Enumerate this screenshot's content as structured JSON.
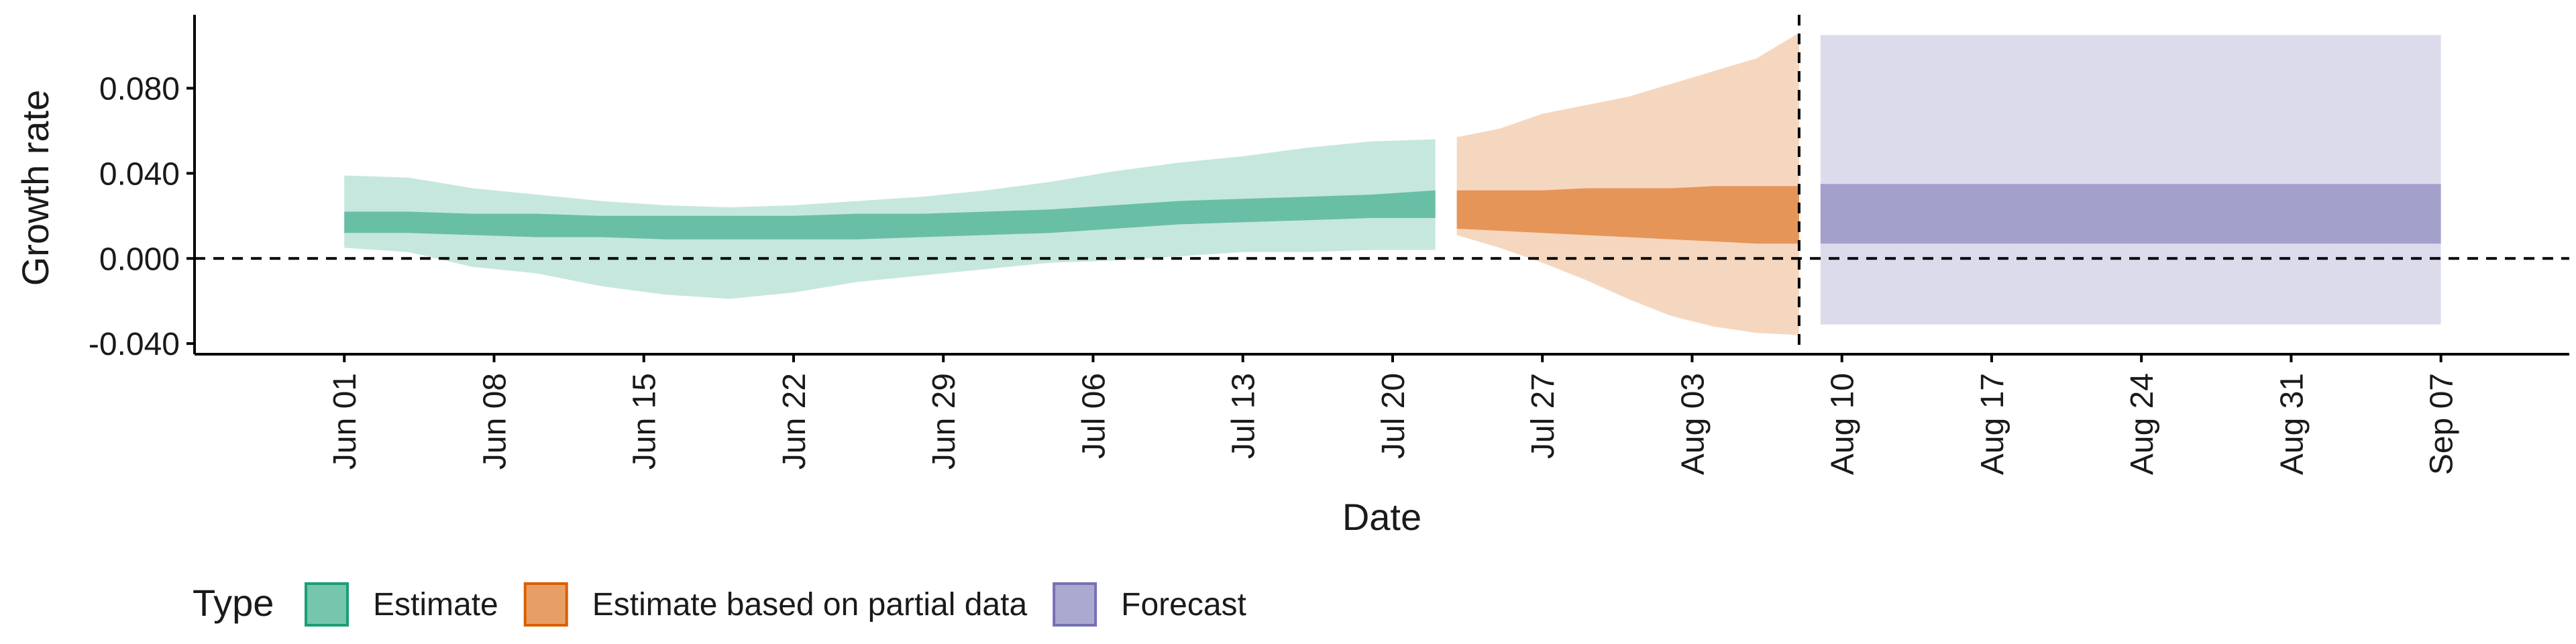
{
  "chart_data": {
    "type": "area",
    "xlabel": "Date",
    "ylabel": "Growth rate",
    "ylim": [
      -0.045,
      0.112
    ],
    "yticks": [
      -0.04,
      0.0,
      0.04,
      0.08
    ],
    "ytick_labels": [
      "-0.040",
      "0.000",
      "0.040",
      "0.080"
    ],
    "xlim": [
      "2020-05-25",
      "2020-09-13"
    ],
    "xticks": [
      "2020-06-01",
      "2020-06-08",
      "2020-06-15",
      "2020-06-22",
      "2020-06-29",
      "2020-07-06",
      "2020-07-13",
      "2020-07-20",
      "2020-07-27",
      "2020-08-03",
      "2020-08-10",
      "2020-08-17",
      "2020-08-24",
      "2020-08-31",
      "2020-09-07"
    ],
    "xtick_labels": [
      "Jun 01",
      "Jun 08",
      "Jun 15",
      "Jun 22",
      "Jun 29",
      "Jul 06",
      "Jul 13",
      "Jul 20",
      "Jul 27",
      "Aug 03",
      "Aug 10",
      "Aug 17",
      "Aug 24",
      "Aug 31",
      "Sep 07"
    ],
    "hline_y": 0.0,
    "vline_x": "2020-08-08",
    "grid": false,
    "legend": {
      "position": "bottom",
      "title": "Type",
      "items": [
        {
          "label": "Estimate",
          "color": "#1b9e77"
        },
        {
          "label": "Estimate based on partial data",
          "color": "#d95f02"
        },
        {
          "label": "Forecast",
          "color": "#7570b3"
        }
      ]
    },
    "series": [
      {
        "name": "Estimate",
        "color": "#1b9e77",
        "x": [
          "2020-06-01",
          "2020-06-04",
          "2020-06-07",
          "2020-06-10",
          "2020-06-13",
          "2020-06-16",
          "2020-06-19",
          "2020-06-22",
          "2020-06-25",
          "2020-06-28",
          "2020-07-01",
          "2020-07-04",
          "2020-07-07",
          "2020-07-10",
          "2020-07-13",
          "2020-07-16",
          "2020-07-19",
          "2020-07-22"
        ],
        "outer_lower": [
          0.005,
          0.003,
          -0.004,
          -0.007,
          -0.013,
          -0.017,
          -0.019,
          -0.016,
          -0.011,
          -0.008,
          -0.005,
          -0.002,
          -0.001,
          0.001,
          0.003,
          0.003,
          0.004,
          0.004
        ],
        "outer_upper": [
          0.039,
          0.038,
          0.033,
          0.03,
          0.027,
          0.025,
          0.024,
          0.025,
          0.027,
          0.029,
          0.032,
          0.036,
          0.041,
          0.045,
          0.048,
          0.052,
          0.055,
          0.056
        ],
        "inner_lower": [
          0.012,
          0.012,
          0.011,
          0.01,
          0.01,
          0.009,
          0.009,
          0.009,
          0.009,
          0.01,
          0.011,
          0.012,
          0.014,
          0.016,
          0.017,
          0.018,
          0.019,
          0.019
        ],
        "inner_upper": [
          0.022,
          0.022,
          0.021,
          0.021,
          0.02,
          0.02,
          0.02,
          0.02,
          0.021,
          0.021,
          0.022,
          0.023,
          0.025,
          0.027,
          0.028,
          0.029,
          0.03,
          0.032
        ]
      },
      {
        "name": "Estimate based on partial data",
        "color": "#d95f02",
        "x": [
          "2020-07-23",
          "2020-07-25",
          "2020-07-27",
          "2020-07-29",
          "2020-07-31",
          "2020-08-02",
          "2020-08-04",
          "2020-08-06",
          "2020-08-08"
        ],
        "outer_lower": [
          0.011,
          0.005,
          -0.002,
          -0.01,
          -0.019,
          -0.027,
          -0.032,
          -0.035,
          -0.036
        ],
        "outer_upper": [
          0.057,
          0.061,
          0.068,
          0.072,
          0.076,
          0.082,
          0.088,
          0.094,
          0.106
        ],
        "inner_lower": [
          0.014,
          0.013,
          0.012,
          0.011,
          0.01,
          0.009,
          0.008,
          0.007,
          0.007
        ],
        "inner_upper": [
          0.032,
          0.032,
          0.032,
          0.033,
          0.033,
          0.033,
          0.034,
          0.034,
          0.034
        ]
      },
      {
        "name": "Forecast",
        "color": "#7570b3",
        "x": [
          "2020-08-09",
          "2020-09-07"
        ],
        "outer_lower": [
          -0.031,
          -0.031
        ],
        "outer_upper": [
          0.105,
          0.105
        ],
        "inner_lower": [
          0.007,
          0.007
        ],
        "inner_upper": [
          0.035,
          0.035
        ]
      }
    ]
  }
}
